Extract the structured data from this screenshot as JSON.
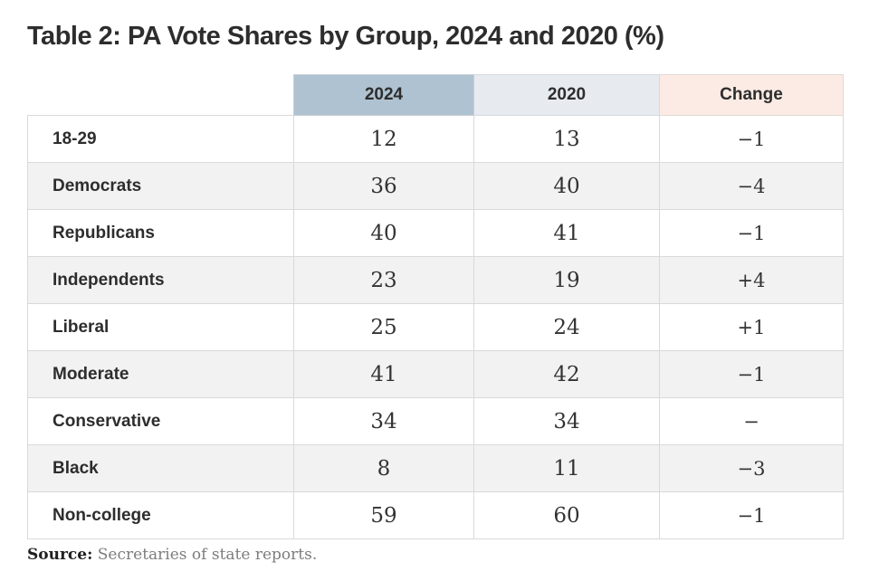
{
  "title": "Table 2: PA Vote Shares by Group, 2024 and 2020 (%)",
  "table": {
    "headers": {
      "blank": "",
      "col2024": "2024",
      "col2020": "2020",
      "colchange": "Change"
    },
    "rows": [
      {
        "label": "18-29",
        "v2024": "12",
        "v2020": "13",
        "change": "−1"
      },
      {
        "label": "Democrats",
        "v2024": "36",
        "v2020": "40",
        "change": "−4"
      },
      {
        "label": "Republicans",
        "v2024": "40",
        "v2020": "41",
        "change": "−1"
      },
      {
        "label": "Independents",
        "v2024": "23",
        "v2020": "19",
        "change": "+4"
      },
      {
        "label": "Liberal",
        "v2024": "25",
        "v2020": "24",
        "change": "+1"
      },
      {
        "label": "Moderate",
        "v2024": "41",
        "v2020": "42",
        "change": "−1"
      },
      {
        "label": "Conservative",
        "v2024": "34",
        "v2020": "34",
        "change": "−"
      },
      {
        "label": "Black",
        "v2024": "8",
        "v2020": "11",
        "change": "−3"
      },
      {
        "label": "Non-college",
        "v2024": "59",
        "v2020": "60",
        "change": "−1"
      }
    ]
  },
  "source": {
    "label": "Source:",
    "text": " Secretaries of state reports."
  },
  "colors": {
    "header_2024_bg": "#afc2d1",
    "header_2020_bg": "#e7ebf0",
    "header_change_bg": "#fcebe4",
    "row_alt_bg": "#f2f2f2",
    "border": "#d9d9d9",
    "text": "#2d2d2d",
    "source_gray": "#7d7d7d"
  },
  "chart_data": {
    "type": "table",
    "title": "Table 2: PA Vote Shares by Group, 2024 and 2020 (%)",
    "columns": [
      "",
      "2024",
      "2020",
      "Change"
    ],
    "categories": [
      "18-29",
      "Democrats",
      "Republicans",
      "Independents",
      "Liberal",
      "Moderate",
      "Conservative",
      "Black",
      "Non-college"
    ],
    "series": [
      {
        "name": "2024",
        "values": [
          12,
          36,
          40,
          23,
          25,
          41,
          34,
          8,
          59
        ]
      },
      {
        "name": "2020",
        "values": [
          13,
          40,
          41,
          19,
          24,
          42,
          34,
          11,
          60
        ]
      },
      {
        "name": "Change",
        "values": [
          "-1",
          "-4",
          "-1",
          "+4",
          "+1",
          "-1",
          "0",
          "-3",
          "-1"
        ]
      }
    ],
    "source": "Source: Secretaries of state reports.",
    "notes": "Values are percentages; striped rows; 2024 column header shaded blue-gray, 2020 light gray-blue, Change light pink."
  }
}
